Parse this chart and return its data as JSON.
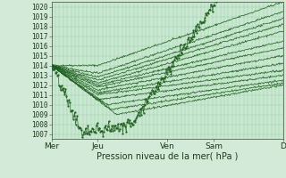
{
  "title": "Pression niveau de la mer( hPa )",
  "background_color": "#d4ead8",
  "plot_bg_color": "#c8e8d0",
  "grid_color": "#9ec8a8",
  "line_color": "#1a5c1a",
  "xlim": [
    0,
    5.0
  ],
  "ylim": [
    1006.5,
    1020.5
  ],
  "yticks": [
    1007,
    1008,
    1009,
    1010,
    1011,
    1012,
    1013,
    1014,
    1015,
    1016,
    1017,
    1018,
    1019,
    1020
  ],
  "xtick_labels": [
    "Mer",
    "Jeu",
    "Ven",
    "Sam",
    "D"
  ],
  "xtick_positions": [
    0.0,
    1.0,
    2.5,
    3.5,
    5.0
  ],
  "ylabel_fontsize": 7,
  "tick_fontsize": 5.5
}
